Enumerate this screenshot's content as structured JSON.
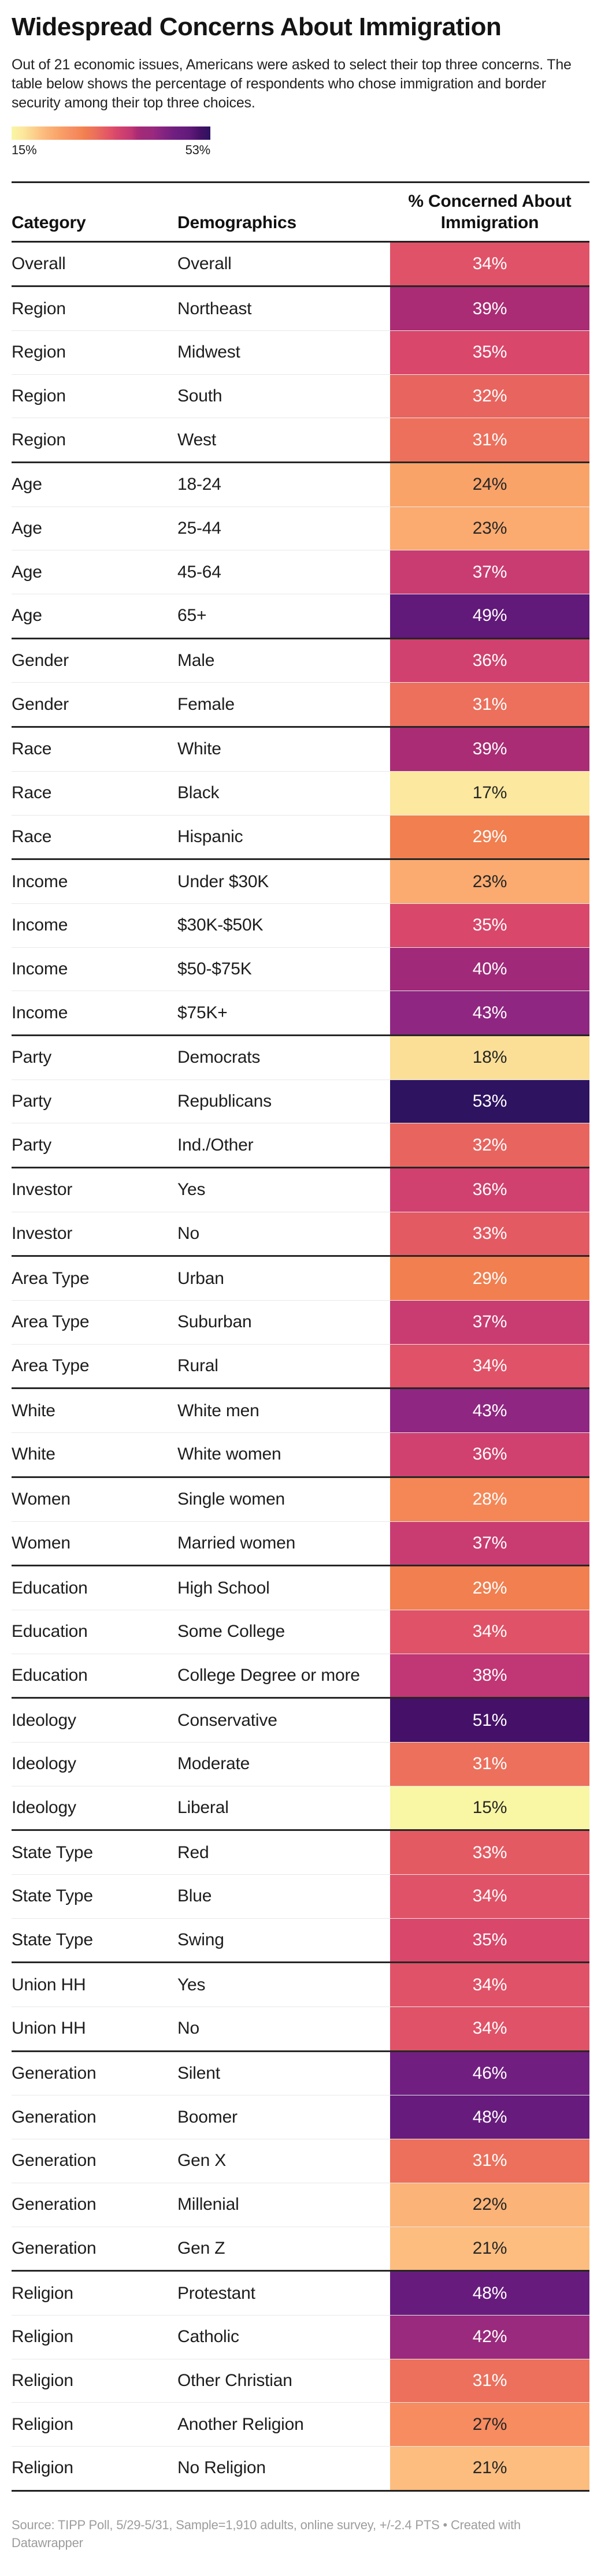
{
  "title": "Widespread Concerns About Immigration",
  "intro": "Out of 21 economic issues, Americans were asked to select their top three concerns. The table below shows the percentage of respondents who chose immigration and border security among their top three choices.",
  "legend": {
    "min_label": "15%",
    "max_label": "53%"
  },
  "chart_data": {
    "type": "table",
    "title": "Widespread Concerns About Immigration",
    "columns": [
      "Category",
      "Demographics",
      "% Concerned About Immigration"
    ],
    "rows": [
      [
        "Overall",
        "Overall",
        34
      ],
      [
        "Region",
        "Northeast",
        39
      ],
      [
        "Region",
        "Midwest",
        35
      ],
      [
        "Region",
        "South",
        32
      ],
      [
        "Region",
        "West",
        31
      ],
      [
        "Age",
        "18-24",
        24
      ],
      [
        "Age",
        "25-44",
        23
      ],
      [
        "Age",
        "45-64",
        37
      ],
      [
        "Age",
        "65+",
        49
      ],
      [
        "Gender",
        "Male",
        36
      ],
      [
        "Gender",
        "Female",
        31
      ],
      [
        "Race",
        "White",
        39
      ],
      [
        "Race",
        "Black",
        17
      ],
      [
        "Race",
        "Hispanic",
        29
      ],
      [
        "Income",
        "Under $30K",
        23
      ],
      [
        "Income",
        "$30K-$50K",
        35
      ],
      [
        "Income",
        "$50-$75K",
        40
      ],
      [
        "Income",
        "$75K+",
        43
      ],
      [
        "Party",
        "Democrats",
        18
      ],
      [
        "Party",
        "Republicans",
        53
      ],
      [
        "Party",
        "Ind./Other",
        32
      ],
      [
        "Investor",
        "Yes",
        36
      ],
      [
        "Investor",
        "No",
        33
      ],
      [
        "Area Type",
        "Urban",
        29
      ],
      [
        "Area Type",
        "Suburban",
        37
      ],
      [
        "Area Type",
        "Rural",
        34
      ],
      [
        "White",
        "White men",
        43
      ],
      [
        "White",
        "White women",
        36
      ],
      [
        "Women",
        "Single women",
        28
      ],
      [
        "Women",
        "Married women",
        37
      ],
      [
        "Education",
        "High School",
        29
      ],
      [
        "Education",
        "Some College",
        34
      ],
      [
        "Education",
        "College Degree or more",
        38
      ],
      [
        "Ideology",
        "Conservative",
        51
      ],
      [
        "Ideology",
        "Moderate",
        31
      ],
      [
        "Ideology",
        "Liberal",
        15
      ],
      [
        "State Type",
        "Red",
        33
      ],
      [
        "State Type",
        "Blue",
        34
      ],
      [
        "State Type",
        "Swing",
        35
      ],
      [
        "Union HH",
        "Yes",
        34
      ],
      [
        "Union HH",
        "No",
        34
      ],
      [
        "Generation",
        "Silent",
        46
      ],
      [
        "Generation",
        "Boomer",
        48
      ],
      [
        "Generation",
        "Gen X",
        31
      ],
      [
        "Generation",
        "Millenial",
        22
      ],
      [
        "Generation",
        "Gen Z",
        21
      ],
      [
        "Religion",
        "Protestant",
        48
      ],
      [
        "Religion",
        "Catholic",
        42
      ],
      [
        "Religion",
        "Other Christian",
        31
      ],
      [
        "Religion",
        "Another Religion",
        27
      ],
      [
        "Religion",
        "No Religion",
        21
      ]
    ],
    "value_suffix": "%",
    "color_scale": {
      "min": 15,
      "max": 53,
      "style": "magma reversed (pale yellow to dark indigo)"
    }
  },
  "value_colors": {
    "15": {
      "bg": "#f9f6a4",
      "fg": "dark"
    },
    "17": {
      "bg": "#fce89e",
      "fg": "dark"
    },
    "18": {
      "bg": "#fbdf96",
      "fg": "dark"
    },
    "21": {
      "bg": "#fcbd7f",
      "fg": "dark"
    },
    "22": {
      "bg": "#fbb377",
      "fg": "dark"
    },
    "23": {
      "bg": "#fbab70",
      "fg": "dark"
    },
    "24": {
      "bg": "#f9a369",
      "fg": "dark"
    },
    "27": {
      "bg": "#f68c60",
      "fg": "dark"
    },
    "28": {
      "bg": "#f58756",
      "fg": "light"
    },
    "29": {
      "bg": "#f17f4f",
      "fg": "light"
    },
    "31": {
      "bg": "#ec705c",
      "fg": "light"
    },
    "32": {
      "bg": "#e8655f",
      "fg": "light"
    },
    "33": {
      "bg": "#e45a63",
      "fg": "light"
    },
    "34": {
      "bg": "#e05267",
      "fg": "light"
    },
    "35": {
      "bg": "#d9476b",
      "fg": "light"
    },
    "36": {
      "bg": "#d0416f",
      "fg": "light"
    },
    "37": {
      "bg": "#c93c71",
      "fg": "light"
    },
    "38": {
      "bg": "#c13674",
      "fg": "light"
    },
    "39": {
      "bg": "#aa2c74",
      "fg": "light"
    },
    "40": {
      "bg": "#a02a79",
      "fg": "light"
    },
    "42": {
      "bg": "#9a2a7d",
      "fg": "light"
    },
    "43": {
      "bg": "#8f2681",
      "fg": "light"
    },
    "46": {
      "bg": "#701f80",
      "fg": "light"
    },
    "48": {
      "bg": "#671c7d",
      "fg": "light"
    },
    "49": {
      "bg": "#61197a",
      "fg": "light"
    },
    "51": {
      "bg": "#451168",
      "fg": "light"
    },
    "53": {
      "bg": "#2d1360",
      "fg": "light"
    }
  },
  "text_colors": {
    "dark": "#262626",
    "light": "#ffffff"
  },
  "footer": {
    "source": "Source: TIPP Poll, 5/29-5/31, Sample=1,910 adults, online survey, +/-2.4 PTS",
    "separator": "•",
    "attribution": "Created with Datawrapper"
  }
}
